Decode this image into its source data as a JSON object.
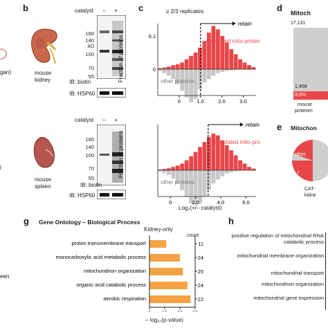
{
  "panel_labels": {
    "b": "b",
    "c": "c",
    "d": "d",
    "e": "e",
    "g": "g",
    "h": "h"
  },
  "left_cut": {
    "organ": "gan)",
    "l": "l",
    "een": "een"
  },
  "blot_top": {
    "catalyst": "catalyst",
    "minus": "–",
    "plus": "+",
    "markers": [
      "180",
      "140",
      "kD",
      "100",
      "70",
      "55"
    ],
    "sample": "mouse kidney",
    "ib_biotin": "IB: biotin",
    "ib_hsp60": "IB: HSP60"
  },
  "blot_bottom": {
    "catalyst": "catalyst",
    "minus": "–",
    "plus": "+",
    "markers": [
      "180",
      "140",
      "100",
      "70",
      "55"
    ],
    "sample": "mouse spleen",
    "ib_biotin": "IB: biotin",
    "ib_hsp60": "IB: HSP60"
  },
  "hist_header": "≥ 2/3 replicates",
  "chart_data": [
    {
      "type": "bar",
      "title": "",
      "ylabel": "Fraction of proteins",
      "xlabel": "",
      "x_ticks": [
        0,
        1,
        2,
        3
      ],
      "y_ticks": [
        "0.1",
        "0",
        "0.1"
      ],
      "cutoff": 1.0,
      "retain_label": "retain",
      "series": [
        {
          "name": "annotated mito-proteins",
          "values": [
            0.003,
            0.005,
            0.008,
            0.012,
            0.015,
            0.02,
            0.03,
            0.04,
            0.05,
            0.065,
            0.085,
            0.11,
            0.13,
            0.12,
            0.1,
            0.08,
            0.06,
            0.045,
            0.03,
            0.02,
            0.012,
            0.006
          ]
        },
        {
          "name": "other proteins",
          "values": [
            -0.005,
            -0.012,
            -0.02,
            -0.03,
            -0.045,
            -0.065,
            -0.085,
            -0.1,
            -0.09,
            -0.06,
            -0.04,
            -0.03,
            -0.02,
            -0.012,
            -0.008,
            -0.005,
            -0.003,
            -0.002,
            -0.001,
            0,
            0,
            0
          ]
        }
      ],
      "bin_start": -0.5,
      "bin_width": 0.2
    },
    {
      "type": "bar",
      "title": "",
      "ylabel": "Fraction of proteins",
      "xlabel": "Log₂(+/– catalyst)",
      "x_ticks": [
        "0",
        "2.0",
        "4.0",
        "6.0"
      ],
      "cutoff": 3.0,
      "retain_label": "retain",
      "series": [
        {
          "name": "annotated mito-proteins",
          "values": [
            0.002,
            0.004,
            0.006,
            0.01,
            0.014,
            0.02,
            0.03,
            0.042,
            0.055,
            0.07,
            0.085,
            0.1,
            0.11,
            0.105,
            0.09,
            0.075,
            0.06,
            0.045,
            0.03,
            0.02,
            0.01,
            0.005
          ]
        },
        {
          "name": "other proteins",
          "values": [
            -0.003,
            -0.008,
            -0.014,
            -0.025,
            -0.04,
            -0.06,
            -0.08,
            -0.1,
            -0.11,
            -0.1,
            -0.08,
            -0.06,
            -0.04,
            -0.028,
            -0.018,
            -0.01,
            -0.006,
            -0.003,
            -0.001,
            0,
            0,
            0
          ]
        }
      ],
      "bin_start": -0.5,
      "bin_width": 0.3
    },
    {
      "type": "bar",
      "title": "Gene Ontology – Biological Process",
      "subtitle": "Kidney-only",
      "xlabel": "– log₁₀(p-value)",
      "count_header": "count",
      "categories": [
        "proton transmembrane transport",
        "monocarboxylic acid metabolic process",
        "mitochondrion organization",
        "organic acid catabolic process",
        "aerobic respiration"
      ],
      "values": [
        11,
        20,
        22,
        25,
        27
      ],
      "counts": [
        "11",
        "24",
        "25",
        "24",
        "22"
      ],
      "xlim": [
        0,
        30
      ],
      "x_ticks": [
        "0",
        "10",
        "20",
        "30"
      ]
    }
  ],
  "panel_d": {
    "title": "Mitoch",
    "top_value": "17,131",
    "bottom_value": "1,458",
    "pct": "8.5%",
    "label1": "mouse",
    "label2": "proteom"
  },
  "panel_e": {
    "title": "Mitochon",
    "other": "other",
    "r": "r",
    "label1": "CAT-",
    "label2": "kidne"
  },
  "panel_h": {
    "items": [
      "positive regulation of mitochondrial RNA catabolic process",
      "mitochondrial membrane organization",
      "mitochondrial transport",
      "mitochondrion organization",
      "mitochondrial gene expression"
    ]
  },
  "colors": {
    "mito": "#e8474a",
    "other": "#c8c8c8",
    "go_bar": "#f5a244",
    "kidney": "#c9674a",
    "spleen": "#b5564f"
  }
}
